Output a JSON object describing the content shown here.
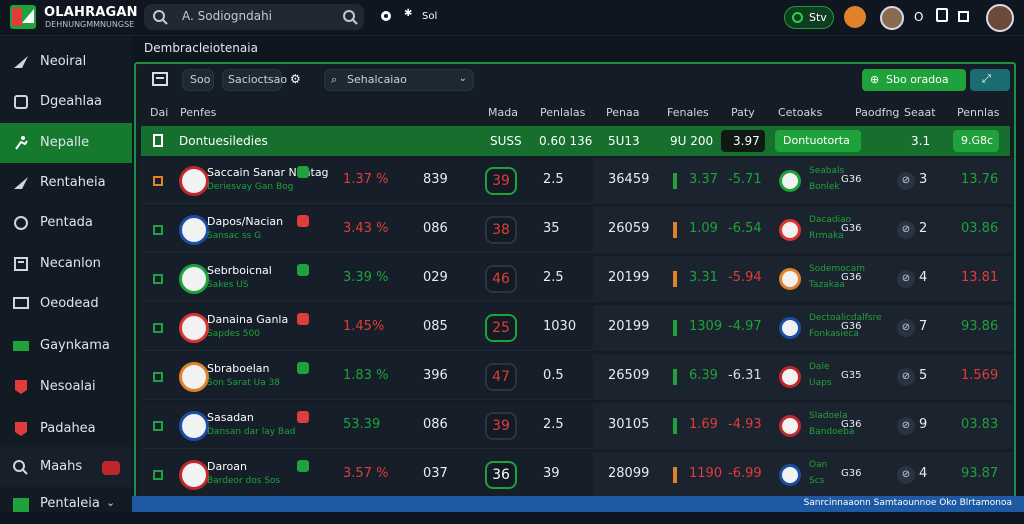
{
  "app": {
    "title": "OLAHRAGAN",
    "subtitle": "DEHNUNGMMNUNGSE"
  },
  "search": {
    "text": "A. Sodiogndahi"
  },
  "topbar": {
    "sel_label": "Sol",
    "status_label": "Stv",
    "extra": "O"
  },
  "sidebar": {
    "items": [
      {
        "label": "Neoiral",
        "icon": "arrow-icon",
        "active": false
      },
      {
        "label": "Dgeahlaa",
        "icon": "shield-icon",
        "active": false
      },
      {
        "label": "Nepalle",
        "icon": "runner-icon",
        "active": true
      },
      {
        "label": "Rentaheia",
        "icon": "arrow-icon",
        "active": false
      },
      {
        "label": "Pentada",
        "icon": "clock-icon",
        "active": false
      },
      {
        "label": "Necanlon",
        "icon": "calendar-icon",
        "active": false
      },
      {
        "label": "Oeodead",
        "icon": "monitor-icon",
        "active": false
      },
      {
        "label": "Gaynkama",
        "icon": "card-icon",
        "active": false
      },
      {
        "label": "Nesoalai",
        "icon": "badge-icon",
        "active": false
      },
      {
        "label": "Padahea",
        "icon": "badge-icon",
        "active": false
      },
      {
        "label": "Maahs",
        "icon": "search-icon",
        "active": false
      },
      {
        "label": "Pentaleia",
        "icon": "chart-icon",
        "active": false
      }
    ]
  },
  "page_title": "Dembracleiotenaia",
  "toolbar": {
    "tab1": "Soo",
    "tab2": "Sacioctsao",
    "dropdown": "Sehalcaiao",
    "action_label": "Sbo oradoa"
  },
  "columns": [
    "Dai",
    "Penfes",
    "Mada",
    "Penlalas",
    "Penaa",
    "Fenales",
    "Paty",
    "Cetoaks",
    "Paodfng",
    "Seaat",
    "Pennlas"
  ],
  "featured": {
    "title": "Dontuesiledies",
    "c1": "SUSS",
    "c2": "0.60 136",
    "c3": "5U13",
    "c4": "9U 200",
    "c5": "3.97",
    "c6": "Dontuotorta",
    "c7": "3.1",
    "c8": "9.G8c"
  },
  "rows": [
    {
      "name": "Saccain Sanar Nentag",
      "sub": "Deriesvay Gan Bog",
      "pct": "1.37 %",
      "val": "839",
      "odds": "39",
      "n": "2.5",
      "code": "36459",
      "pair1": "3.37",
      "pair2": "-5.71",
      "team": "Seabals",
      "team_sub": "Bonlek",
      "short": "G36",
      "rank": "3",
      "score": "13.76",
      "pct_color": "#e23b3b",
      "odds_color": "#e23b3b",
      "odds_border": "#1fa23b",
      "bar_color": "#1fa23b",
      "pair1_color": "#1fa23b",
      "pair2_color": "#1fa23b",
      "score_color": "#1fa23b"
    },
    {
      "name": "Dapos/Nacian",
      "sub": "Sansac ss G",
      "pct": "3.43 %",
      "val": "086",
      "odds": "38",
      "n": "35",
      "code": "26059",
      "pair1": "1.09",
      "pair2": "-6.54",
      "team": "Dacadiao",
      "team_sub": "Rrmaka",
      "short": "G36",
      "rank": "2",
      "score": "03.86",
      "pct_color": "#e23b3b",
      "odds_color": "#e23b3b",
      "odds_border": "#2a3542",
      "bar_color": "#e0822a",
      "pair1_color": "#1fa23b",
      "pair2_color": "#1fa23b",
      "score_color": "#1fa23b"
    },
    {
      "name": "Sebrboicnal",
      "sub": "Sakes US",
      "pct": "3.39 %",
      "val": "029",
      "odds": "46",
      "n": "2.5",
      "code": "20199",
      "pair1": "3.31",
      "pair2": "-5.94",
      "team": "Sodemocam",
      "team_sub": "Tazakaa",
      "short": "G36",
      "rank": "4",
      "score": "13.81",
      "pct_color": "#1fa23b",
      "odds_color": "#e23b3b",
      "odds_border": "#2a3542",
      "bar_color": "#e0822a",
      "pair1_color": "#1fa23b",
      "pair2_color": "#e23b3b",
      "score_color": "#e23b3b"
    },
    {
      "name": "Danaina Ganla",
      "sub": "Sapdes 500",
      "pct": "1.45%",
      "val": "085",
      "odds": "25",
      "n": "1030",
      "code": "20199",
      "pair1": "1309",
      "pair2": "-4.97",
      "team": "Dectoalicdalfsre",
      "team_sub": "Fonkasieca",
      "short": "G36",
      "rank": "7",
      "score": "93.86",
      "pct_color": "#e23b3b",
      "odds_color": "#e23b3b",
      "odds_border": "#1fa23b",
      "bar_color": "#1fa23b",
      "pair1_color": "#1fa23b",
      "pair2_color": "#1fa23b",
      "score_color": "#1fa23b"
    },
    {
      "name": "Sbraboelan",
      "sub": "Son Sarat Ua 38",
      "pct": "1.83 %",
      "val": "396",
      "odds": "47",
      "n": "0.5",
      "code": "26509",
      "pair1": "6.39",
      "pair2": "-6.31",
      "team": "Dale",
      "team_sub": "Uaps",
      "short": "G35",
      "rank": "5",
      "score": "1.569",
      "pct_color": "#1fa23b",
      "odds_color": "#e23b3b",
      "odds_border": "#2a3542",
      "bar_color": "#1fa23b",
      "pair1_color": "#1fa23b",
      "pair2_color": "#d7dde6",
      "score_color": "#e23b3b"
    },
    {
      "name": "Sasadan",
      "sub": "Dansan dar lay Bad",
      "pct": "53.39",
      "val": "086",
      "odds": "39",
      "n": "2.5",
      "code": "30105",
      "pair1": "1.69",
      "pair2": "-4.93",
      "team": "Sladoela",
      "team_sub": "Bandoeba",
      "short": "G36",
      "rank": "9",
      "score": "03.83",
      "pct_color": "#1fa23b",
      "odds_color": "#e23b3b",
      "odds_border": "#2a3542",
      "bar_color": "#1fa23b",
      "pair1_color": "#e23b3b",
      "pair2_color": "#e23b3b",
      "score_color": "#1fa23b"
    },
    {
      "name": "Daroan",
      "sub": "Bardeor dos Sos",
      "pct": "3.57 %",
      "val": "037",
      "odds": "36",
      "n": "39",
      "code": "28099",
      "pair1": "1190",
      "pair2": "-6.99",
      "team": "Oan",
      "team_sub": "Scs",
      "short": "G36",
      "rank": "4",
      "score": "93.87",
      "pct_color": "#e23b3b",
      "odds_color": "#ffffff",
      "odds_border": "#1fa23b",
      "bar_color": "#e0822a",
      "pair1_color": "#e23b3b",
      "pair2_color": "#e23b3b",
      "score_color": "#1fa23b"
    }
  ],
  "footer": {
    "text": "Sanrcinnaaonn Samtaounnoe Oko Blrtamonoa"
  },
  "colors": {
    "accent": "#1fa23b",
    "danger": "#e23b3b",
    "bg": "#0f1620"
  }
}
